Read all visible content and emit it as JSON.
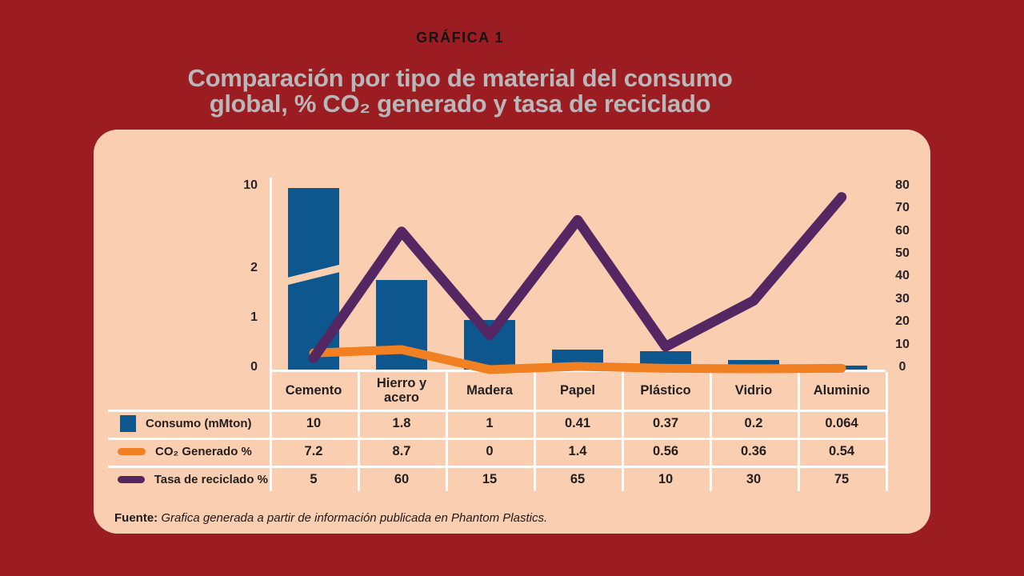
{
  "page": {
    "kicker": "GRÁFICA 1",
    "title_line1": "Comparación por tipo de material del consumo",
    "title_line2": "global, % CO₂ generado y tasa de reciclado",
    "source_label": "Fuente:",
    "source_text": " Grafica generada a partir de información publicada en Phantom Plastics."
  },
  "colors": {
    "background": "#9b1d21",
    "panel": "#facfb1",
    "bar_blue": "#0d568e",
    "line_orange": "#f08021",
    "line_purple": "#542662",
    "title_gray": "#b8b7ba",
    "text_dark": "#231f20",
    "grid_white": "#ffffff"
  },
  "chart_data": {
    "type": "combo (bar + line) with data table",
    "categories": [
      "Cemento",
      "Hierro y acero",
      "Madera",
      "Papel",
      "Plástico",
      "Vidrio",
      "Aluminio"
    ],
    "series": [
      {
        "name": "Consumo (mMton)",
        "type": "bar",
        "axis": "left",
        "color": "#0d568e",
        "values": [
          10,
          1.8,
          1,
          0.41,
          0.37,
          0.2,
          0.064
        ]
      },
      {
        "name": "CO₂ Generado %",
        "type": "line",
        "axis": "right",
        "color": "#f08021",
        "values": [
          7.2,
          8.7,
          0,
          1.4,
          0.56,
          0.36,
          0.54
        ]
      },
      {
        "name": "Tasa de reciclado %",
        "type": "line",
        "axis": "right",
        "color": "#542662",
        "values": [
          5,
          60,
          15,
          65,
          10,
          30,
          75
        ]
      }
    ],
    "left_axis": {
      "ticks": [
        0,
        1,
        2,
        10
      ],
      "broken": true,
      "break_between": [
        2,
        10
      ]
    },
    "right_axis": {
      "ticks": [
        0,
        10,
        20,
        30,
        40,
        50,
        60,
        70,
        80
      ],
      "range": [
        0,
        80
      ]
    },
    "grid": "table grid below plot, white lines",
    "legend_position": "table-left-column"
  }
}
